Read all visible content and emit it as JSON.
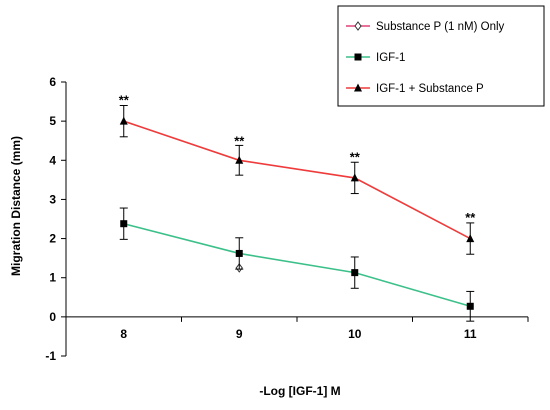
{
  "chart_data": {
    "type": "line",
    "xlabel": "-Log [IGF-1] M",
    "ylabel": "Migration Distance (mm)",
    "x": [
      8,
      9,
      10,
      11
    ],
    "xticks": [
      "8",
      "9",
      "10",
      "11"
    ],
    "xlim": [
      7.5,
      11.5
    ],
    "ylim": [
      -1,
      6
    ],
    "yticks": [
      "-1",
      "0",
      "1",
      "2",
      "3",
      "4",
      "5",
      "6"
    ],
    "grid": false,
    "legend_position": "top-right",
    "series": [
      {
        "name": "Substance P (1 nM) Only",
        "color": "#e0417a",
        "marker": "open-diamond",
        "points": [
          {
            "x": 9,
            "y": 1.25,
            "err": 0
          }
        ]
      },
      {
        "name": "IGF-1",
        "color": "#3cc08a",
        "marker": "square",
        "points": [
          {
            "x": 8,
            "y": 2.38,
            "err": 0.4
          },
          {
            "x": 9,
            "y": 1.62,
            "err": 0.4
          },
          {
            "x": 10,
            "y": 1.13,
            "err": 0.4
          },
          {
            "x": 11,
            "y": 0.27,
            "err": 0.38
          }
        ]
      },
      {
        "name": "IGF-1 + Substance P",
        "color": "#ef3b3b",
        "marker": "triangle",
        "points": [
          {
            "x": 8,
            "y": 5.0,
            "err": 0.4
          },
          {
            "x": 9,
            "y": 4.0,
            "err": 0.38
          },
          {
            "x": 10,
            "y": 3.55,
            "err": 0.4
          },
          {
            "x": 11,
            "y": 2.0,
            "err": 0.4
          }
        ]
      }
    ],
    "annotations": [
      {
        "text": "**",
        "x": 8,
        "y": 5.55
      },
      {
        "text": "**",
        "x": 9,
        "y": 4.5
      },
      {
        "text": "**",
        "x": 10,
        "y": 4.1
      },
      {
        "text": "**",
        "x": 11,
        "y": 2.55
      }
    ]
  }
}
